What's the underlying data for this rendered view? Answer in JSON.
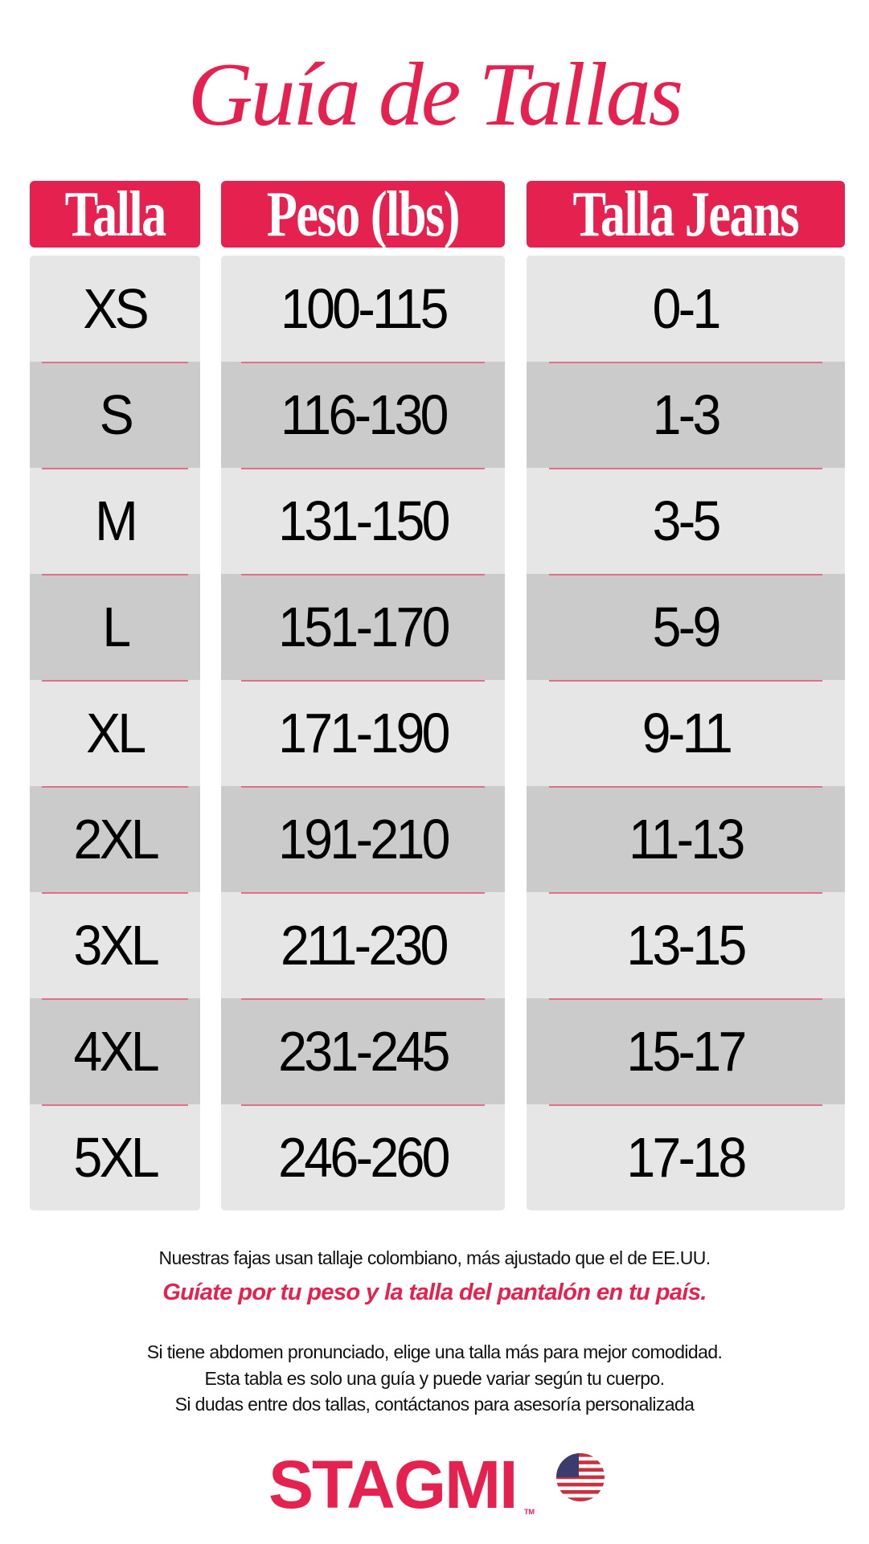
{
  "title": "Guía de Tallas",
  "columns": [
    "Talla",
    "Peso (lbs)",
    "Talla Jeans"
  ],
  "rows": [
    [
      "XS",
      "100-115",
      "0-1"
    ],
    [
      "S",
      "116-130",
      "1-3"
    ],
    [
      "M",
      "131-150",
      "3-5"
    ],
    [
      "L",
      "151-170",
      "5-9"
    ],
    [
      "XL",
      "171-190",
      "9-11"
    ],
    [
      "2XL",
      "191-210",
      "11-13"
    ],
    [
      "3XL",
      "211-230",
      "13-15"
    ],
    [
      "4XL",
      "231-245",
      "15-17"
    ],
    [
      "5XL",
      "246-260",
      "17-18"
    ]
  ],
  "notes": {
    "line1": "Nuestras fajas usan tallaje colombiano, más ajustado que el de EE.UU.",
    "highlight": "Guíate por tu peso y la talla del pantalón en tu país.",
    "line2": "Si tiene abdomen pronunciado, elige una talla más para mejor comodidad.",
    "line3": "Esta tabla es solo una guía y puede variar según tu cuerpo.",
    "line4": "Si dudas entre dos tallas, contáctanos para asesoría personalizada"
  },
  "brand": {
    "name": "STAGMI",
    "trademark": "TM",
    "flag_icon": "us-flag-icon"
  },
  "colors": {
    "accent": "#e5214f",
    "row_light": "#e6e6e6",
    "row_dark": "#cbcbcb"
  }
}
